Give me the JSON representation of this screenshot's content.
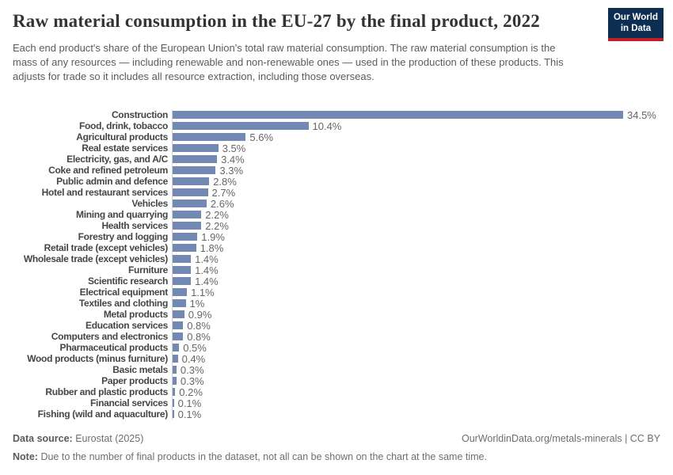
{
  "header": {
    "logo": {
      "line1": "Our World",
      "line2": "in Data",
      "bg_color": "#0d2e53",
      "accent_color": "#bf2026"
    }
  },
  "chart_data": {
    "type": "bar",
    "orientation": "horizontal",
    "title": "Raw material consumption in the EU-27 by the final product, 2022",
    "subtitle": "Each end product's share of the European Union's total raw material consumption. The raw material consumption is the mass of any resources — including renewable and non-renewable ones — used in the production of these products. This adjusts for trade so it includes all resource extraction, including those overseas.",
    "unit": "%",
    "xlim": [
      0,
      34.5
    ],
    "grid": false,
    "legend": "none",
    "bar_color": "#7289b3",
    "categories": [
      "Construction",
      "Food, drink, tobacco",
      "Agricultural products",
      "Real estate services",
      "Electricity, gas, and A/C",
      "Coke and refined petroleum",
      "Public admin and defence",
      "Hotel and restaurant services",
      "Vehicles",
      "Mining and quarrying",
      "Health services",
      "Forestry and logging",
      "Retail trade (except vehicles)",
      "Wholesale trade (except vehicles)",
      "Furniture",
      "Scientific research",
      "Electrical equipment",
      "Textiles and clothing",
      "Metal products",
      "Education services",
      "Computers and electronics",
      "Pharmaceutical products",
      "Wood products (minus furniture)",
      "Basic metals",
      "Paper products",
      "Rubber and plastic products",
      "Financial services",
      "Fishing (wild and aquaculture)"
    ],
    "values": [
      34.5,
      10.4,
      5.6,
      3.5,
      3.4,
      3.3,
      2.8,
      2.7,
      2.6,
      2.2,
      2.2,
      1.9,
      1.8,
      1.4,
      1.4,
      1.4,
      1.1,
      1,
      0.9,
      0.8,
      0.8,
      0.5,
      0.4,
      0.3,
      0.3,
      0.2,
      0.1,
      0.1
    ],
    "value_labels": [
      "34.5%",
      "10.4%",
      "5.6%",
      "3.5%",
      "3.4%",
      "3.3%",
      "2.8%",
      "2.7%",
      "2.6%",
      "2.2%",
      "2.2%",
      "1.9%",
      "1.8%",
      "1.4%",
      "1.4%",
      "1.4%",
      "1.1%",
      "1%",
      "0.9%",
      "0.8%",
      "0.8%",
      "0.5%",
      "0.4%",
      "0.3%",
      "0.3%",
      "0.2%",
      "0.1%",
      "0.1%"
    ]
  },
  "footer": {
    "source_label": "Data source:",
    "source_value": "Eurostat (2025)",
    "attribution": "OurWorldinData.org/metals-minerals | CC BY",
    "note_label": "Note:",
    "note_value": "Due to the number of final products in the dataset, not all can be shown on the chart at the same time."
  }
}
